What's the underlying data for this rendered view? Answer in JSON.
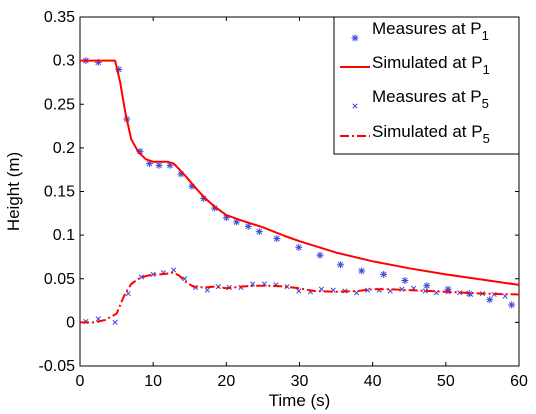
{
  "chart_data": {
    "type": "line",
    "xlabel": "Time (s)",
    "ylabel": "Height (m)",
    "xlim": [
      0,
      60
    ],
    "ylim": [
      -0.05,
      0.35
    ],
    "xticks": [
      0,
      10,
      20,
      30,
      40,
      50,
      60
    ],
    "yticks": [
      -0.05,
      0,
      0.05,
      0.1,
      0.15,
      0.2,
      0.25,
      0.3,
      0.35
    ],
    "grid": false,
    "legend_position": "top-right",
    "series": [
      {
        "name": "Measures at P",
        "subscript": "1",
        "kind": "scatter",
        "marker": "asterisk",
        "color": "#3b4bd9",
        "x": [
          0.8,
          2.5,
          5.3,
          6.4,
          8.2,
          9.5,
          10.8,
          12.3,
          13.8,
          15.3,
          16.9,
          18.4,
          20.0,
          21.4,
          23.0,
          24.5,
          26.9,
          29.9,
          32.8,
          35.6,
          38.5,
          41.5,
          44.4,
          47.4,
          50.3,
          53.2,
          56.0,
          59.0
        ],
        "y": [
          0.3,
          0.298,
          0.29,
          0.233,
          0.196,
          0.182,
          0.18,
          0.18,
          0.17,
          0.156,
          0.142,
          0.131,
          0.12,
          0.115,
          0.11,
          0.104,
          0.096,
          0.086,
          0.077,
          0.066,
          0.059,
          0.055,
          0.048,
          0.042,
          0.038,
          0.033,
          0.026,
          0.02
        ]
      },
      {
        "name": "Simulated at P",
        "subscript": "1",
        "kind": "line",
        "dash": "solid",
        "color": "#ff0000",
        "x": [
          0,
          2,
          4.8,
          5.5,
          6.2,
          7,
          8,
          9,
          10,
          11,
          12,
          12.8,
          13.5,
          14.5,
          15.5,
          17,
          18.5,
          20,
          22,
          25,
          28,
          30,
          35,
          40,
          45,
          50,
          55,
          60
        ],
        "y": [
          0.3,
          0.3,
          0.3,
          0.275,
          0.24,
          0.21,
          0.195,
          0.187,
          0.184,
          0.184,
          0.184,
          0.182,
          0.176,
          0.167,
          0.157,
          0.143,
          0.132,
          0.123,
          0.117,
          0.109,
          0.099,
          0.093,
          0.08,
          0.07,
          0.062,
          0.055,
          0.049,
          0.043
        ]
      },
      {
        "name": "Measures at P",
        "subscript": "5",
        "kind": "scatter",
        "marker": "x",
        "color": "#3b4bd9",
        "x": [
          0.8,
          2.5,
          4.8,
          6.6,
          8.4,
          10.0,
          11.4,
          12.8,
          14.3,
          15.8,
          17.4,
          18.9,
          20.4,
          22.0,
          23.6,
          25.2,
          26.8,
          28.3,
          29.9,
          31.5,
          33.0,
          34.6,
          36.2,
          37.8,
          39.3,
          40.9,
          42.4,
          44.0,
          45.6,
          47.2,
          48.7,
          50.3,
          51.9,
          53.4,
          55.0,
          56.6,
          58.1
        ],
        "y": [
          0.001,
          0.004,
          0.0,
          0.033,
          0.052,
          0.055,
          0.057,
          0.06,
          0.05,
          0.04,
          0.037,
          0.041,
          0.04,
          0.04,
          0.044,
          0.044,
          0.043,
          0.041,
          0.036,
          0.035,
          0.038,
          0.037,
          0.036,
          0.034,
          0.037,
          0.037,
          0.036,
          0.038,
          0.039,
          0.036,
          0.034,
          0.035,
          0.034,
          0.032,
          0.033,
          0.032,
          0.03
        ]
      },
      {
        "name": "Simulated at P",
        "subscript": "5",
        "kind": "line",
        "dash": "dashdot",
        "color": "#ff0000",
        "x": [
          0,
          2,
          3.5,
          5,
          6,
          7,
          8,
          9,
          10,
          11,
          12,
          12.7,
          13.5,
          14.5,
          15.5,
          17,
          18.5,
          20,
          22,
          24,
          26,
          28,
          30,
          32,
          35,
          38,
          40,
          42,
          45,
          50,
          55,
          60
        ],
        "y": [
          0.0,
          0.0,
          0.003,
          0.01,
          0.03,
          0.044,
          0.05,
          0.053,
          0.055,
          0.055,
          0.056,
          0.057,
          0.054,
          0.046,
          0.041,
          0.04,
          0.041,
          0.039,
          0.041,
          0.042,
          0.042,
          0.041,
          0.039,
          0.036,
          0.035,
          0.036,
          0.038,
          0.038,
          0.037,
          0.035,
          0.033,
          0.032
        ]
      }
    ]
  }
}
